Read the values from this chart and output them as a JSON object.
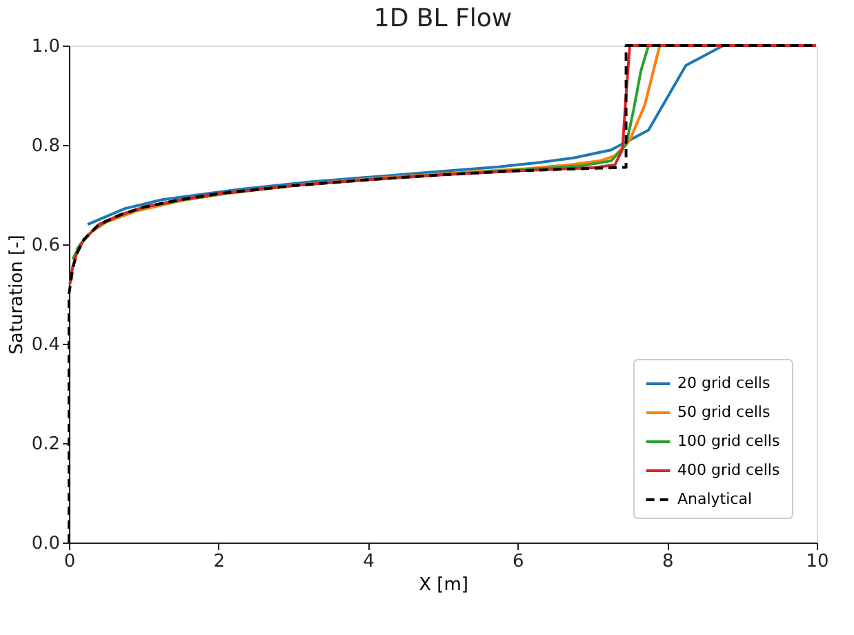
{
  "chart_data": {
    "type": "line",
    "title": "1D BL Flow",
    "xlabel": "X [m]",
    "ylabel": "Saturation [-]",
    "xlim": [
      0,
      10
    ],
    "ylim": [
      0,
      1
    ],
    "xticks": [
      0,
      2,
      4,
      6,
      8,
      10
    ],
    "yticks": [
      {
        "value": 0,
        "label": "0.0"
      },
      0.2,
      0.4,
      0.6,
      0.8,
      {
        "value": 1,
        "label": "1.0"
      }
    ],
    "grid": false,
    "legend": "bottom right",
    "line_style": "solid",
    "marker": "none",
    "series": [
      {
        "name": "20 grid cells",
        "color": "#1f77b4",
        "x": [
          0.25,
          0.75,
          1.25,
          1.75,
          2.25,
          2.75,
          3.25,
          3.75,
          4.25,
          4.75,
          5.25,
          5.75,
          6.25,
          6.75,
          7.25,
          7.75,
          8.25,
          8.75
        ],
        "values": [
          0.64,
          0.672,
          0.69,
          0.7,
          0.71,
          0.718,
          0.726,
          0.732,
          0.738,
          0.744,
          0.75,
          0.756,
          0.764,
          0.774,
          0.79,
          0.83,
          0.96,
          1.0
        ]
      },
      {
        "name": "50 grid cells",
        "color": "#ff7f0e",
        "x": [
          0.1,
          0.3,
          0.5,
          0.9,
          1.5,
          2.1,
          3.1,
          4.1,
          5.1,
          6.1,
          6.7,
          7.1,
          7.3,
          7.5,
          7.7,
          7.9,
          8.1
        ],
        "values": [
          0.59,
          0.625,
          0.645,
          0.667,
          0.688,
          0.702,
          0.72,
          0.733,
          0.743,
          0.752,
          0.76,
          0.768,
          0.778,
          0.81,
          0.88,
          1.0,
          1.0
        ]
      },
      {
        "name": "100 grid cells",
        "color": "#2ca02c",
        "x": [
          0.05,
          0.15,
          0.35,
          0.65,
          1.05,
          1.55,
          2.05,
          3.05,
          4.05,
          5.05,
          6.05,
          6.85,
          7.25,
          7.45,
          7.55,
          7.65,
          7.75
        ],
        "values": [
          0.57,
          0.6,
          0.633,
          0.658,
          0.676,
          0.69,
          0.702,
          0.719,
          0.731,
          0.741,
          0.75,
          0.758,
          0.768,
          0.8,
          0.87,
          0.95,
          1.0
        ]
      },
      {
        "name": "400 grid cells",
        "color": "#d62728",
        "x": [
          0.0125,
          0.05,
          0.1,
          0.2,
          0.4,
          0.7,
          1.0,
          1.5,
          2.0,
          3.0,
          4.0,
          5.0,
          6.0,
          7.0,
          7.3,
          7.4,
          7.45,
          7.5,
          8.5,
          9.99
        ],
        "values": [
          0.52,
          0.555,
          0.58,
          0.61,
          0.64,
          0.66,
          0.675,
          0.69,
          0.702,
          0.718,
          0.73,
          0.74,
          0.748,
          0.754,
          0.76,
          0.79,
          0.9,
          1.0,
          1.0,
          1.0
        ]
      },
      {
        "name": "Analytical",
        "color": "#000000",
        "line_style": "dashed",
        "x": [
          0,
          0.0,
          0.05,
          0.1,
          0.2,
          0.4,
          0.7,
          1.0,
          1.5,
          2.0,
          3.0,
          4.0,
          5.0,
          6.0,
          7.0,
          7.45,
          7.45,
          10
        ],
        "values": [
          0,
          0.5,
          0.55,
          0.58,
          0.61,
          0.64,
          0.66,
          0.675,
          0.69,
          0.702,
          0.718,
          0.73,
          0.74,
          0.748,
          0.753,
          0.755,
          1.0,
          1.0
        ]
      }
    ]
  }
}
